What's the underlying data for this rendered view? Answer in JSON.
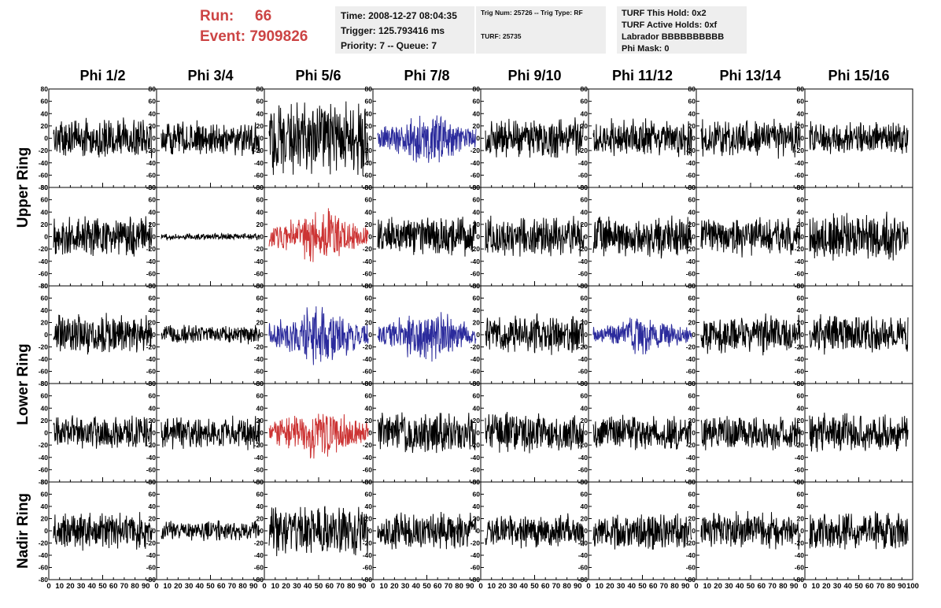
{
  "header": {
    "run_label": "Run:",
    "run_value": "66",
    "event_label": "Event:",
    "event_value": "7909826",
    "time_line": "Time: 2008-12-27 08:04:35",
    "trigger_line": "Trigger: 125.793416 ms",
    "priority_line": "Priority: 7 -- Queue: 7",
    "trig_num_line": "Trig Num: 25726 -- Trig Type: RF",
    "turf_line": "TURF: 25735",
    "turf_hold_line": "TURF This Hold: 0x2",
    "turf_active_line": "TURF Active Holds: 0xf",
    "labrador_line": "Labrador BBBBBBBBBB",
    "phi_mask_line": "Phi Mask: 0"
  },
  "chart_data": {
    "type": "line",
    "columns": [
      "Phi 1/2",
      "Phi 3/4",
      "Phi 5/6",
      "Phi 7/8",
      "Phi 9/10",
      "Phi 11/12",
      "Phi 13/14",
      "Phi 15/16"
    ],
    "ring_labels": [
      "Upper Ring",
      "Lower Ring",
      "Nadir Ring"
    ],
    "y_ticks": [
      80,
      60,
      40,
      20,
      0,
      -20,
      -40,
      -60,
      -80
    ],
    "x_ticks": [
      0,
      10,
      20,
      30,
      40,
      50,
      60,
      70,
      80,
      90,
      100
    ],
    "xlim": [
      0,
      100
    ],
    "ylim": [
      -80,
      80
    ],
    "colors": {
      "default": "#000000",
      "blue": "#2b2b9c",
      "red": "#cc3333"
    },
    "trace_colors": [
      [
        "default",
        "default",
        "default",
        "blue",
        "default",
        "default",
        "default",
        "default"
      ],
      [
        "default",
        "default",
        "red",
        "default",
        "default",
        "default",
        "default",
        "default"
      ],
      [
        "default",
        "default",
        "blue",
        "blue",
        "default",
        "blue",
        "default",
        "default"
      ],
      [
        "default",
        "default",
        "red",
        "default",
        "default",
        "default",
        "default",
        "default"
      ],
      [
        "default",
        "default",
        "default",
        "default",
        "default",
        "default",
        "default",
        "default"
      ]
    ],
    "trace_amplitudes": [
      [
        30,
        25,
        55,
        35,
        30,
        28,
        28,
        25
      ],
      [
        30,
        5,
        35,
        30,
        30,
        30,
        30,
        35
      ],
      [
        30,
        15,
        40,
        35,
        30,
        25,
        30,
        30
      ],
      [
        25,
        25,
        35,
        30,
        30,
        25,
        25,
        30
      ],
      [
        28,
        15,
        38,
        28,
        25,
        28,
        28,
        30
      ]
    ]
  }
}
